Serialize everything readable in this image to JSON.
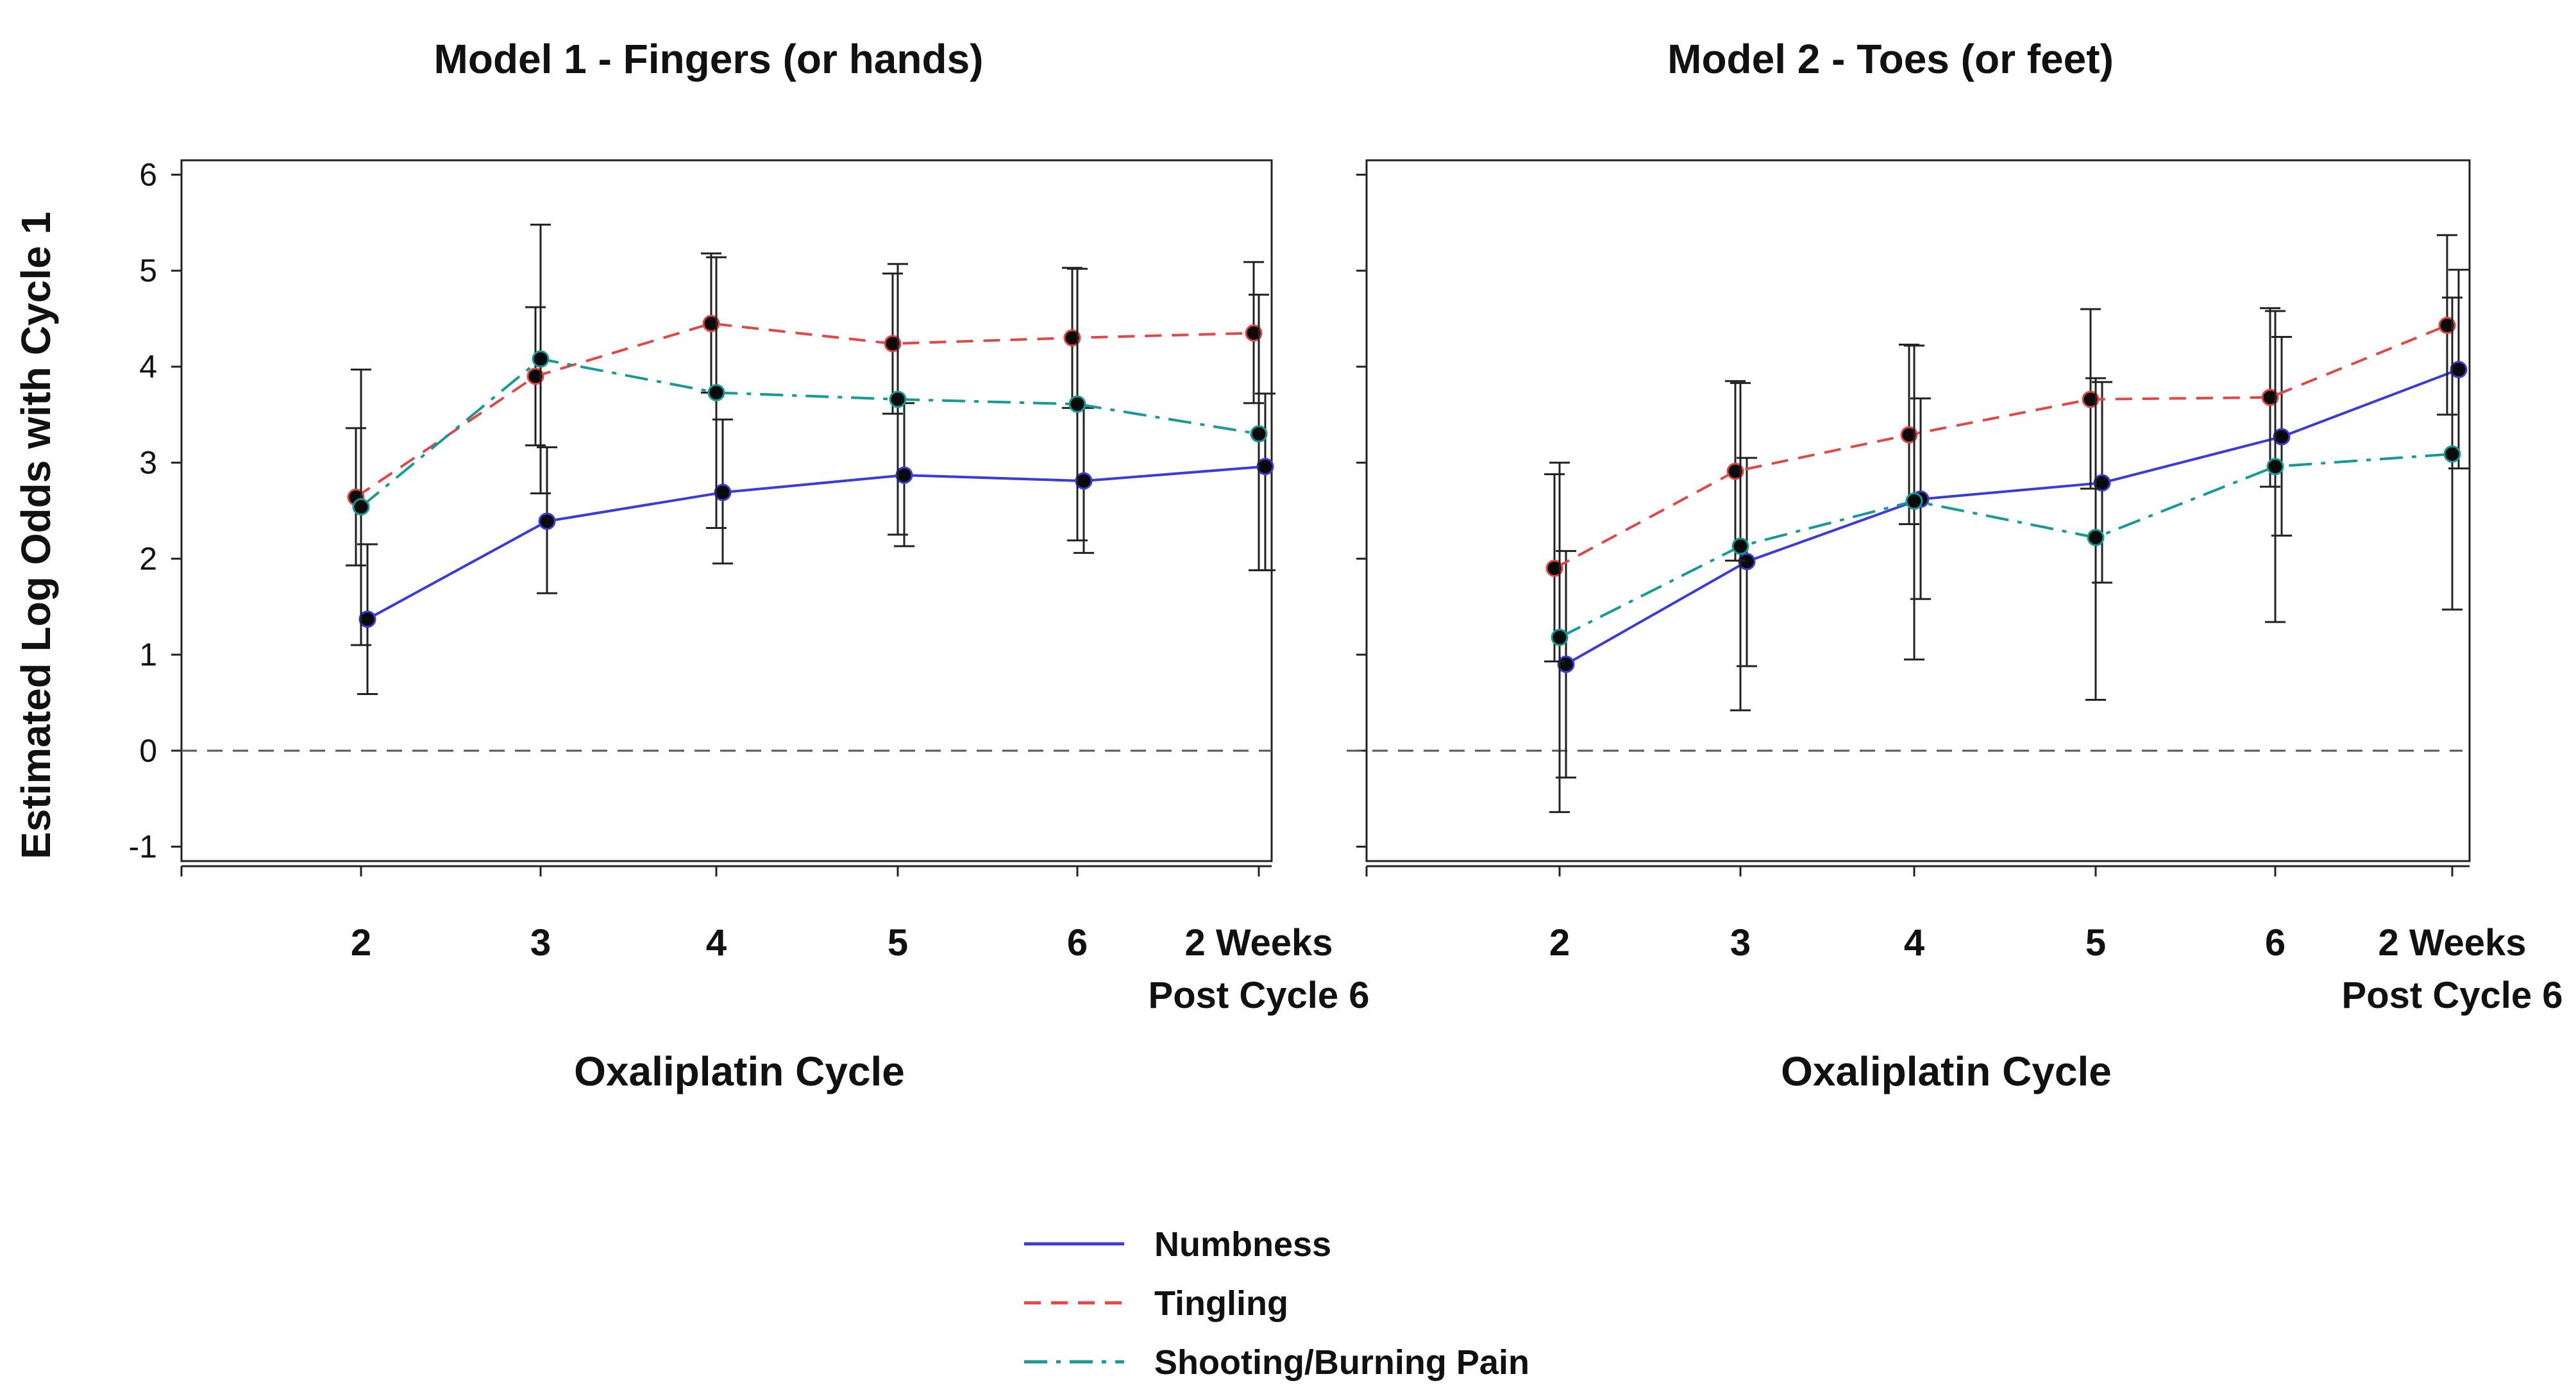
{
  "colors": {
    "numbness": "#3b3bd9",
    "tingling": "#e04848",
    "pain": "#159a96",
    "marker": "#0a0a0a",
    "errorbar": "#222222",
    "reference_line": "#555555",
    "frame": "#222222"
  },
  "shared": {
    "ylabel": "Estimated Log Odds with Cycle 1",
    "y_ticks": [
      "-1",
      "0",
      "1",
      "2",
      "3",
      "4",
      "5",
      "6"
    ]
  },
  "legend": {
    "items": [
      {
        "label": "Numbness",
        "series": "numbness",
        "dash": "solid"
      },
      {
        "label": "Tingling",
        "series": "tingling",
        "dash": "dashed"
      },
      {
        "label": "Shooting/Burning Pain",
        "series": "pain",
        "dash": "dashdot"
      }
    ]
  },
  "chart_data": [
    {
      "type": "line",
      "title": "Model 1 - Fingers (or hands)",
      "xlabel": "Oxaliplatin Cycle",
      "ylabel": "Estimated Log Odds with Cycle 1",
      "categories": [
        "2",
        "3",
        "4",
        "5",
        "6",
        "2 Weeks Post Cycle 6"
      ],
      "category_lines": [
        [
          "2"
        ],
        [
          "3"
        ],
        [
          "4"
        ],
        [
          "5"
        ],
        [
          "6"
        ],
        [
          "2 Weeks",
          "Post Cycle 6"
        ]
      ],
      "ylim": [
        -1.15,
        6.15
      ],
      "y_ticks": [
        -1,
        0,
        1,
        2,
        3,
        4,
        5,
        6
      ],
      "reference_line": 0,
      "legend_position": "bottom",
      "series": [
        {
          "name": "Numbness",
          "key": "numbness",
          "values": [
            1.37,
            2.39,
            2.69,
            2.87,
            2.81,
            2.96
          ],
          "lower": [
            0.59,
            1.64,
            1.95,
            2.13,
            2.06,
            1.88
          ],
          "upper": [
            2.15,
            3.16,
            3.45,
            3.62,
            3.57,
            3.72
          ]
        },
        {
          "name": "Tingling",
          "key": "tingling",
          "values": [
            2.64,
            3.9,
            4.45,
            4.24,
            4.3,
            4.35
          ],
          "lower": [
            1.93,
            3.18,
            3.73,
            3.51,
            3.57,
            3.62
          ],
          "upper": [
            3.36,
            4.62,
            5.18,
            4.97,
            5.03,
            5.09
          ]
        },
        {
          "name": "Shooting/Burning Pain",
          "key": "pain",
          "values": [
            2.54,
            4.08,
            3.73,
            3.66,
            3.61,
            3.3
          ],
          "lower": [
            1.1,
            2.68,
            2.32,
            2.25,
            2.19,
            1.88
          ],
          "upper": [
            3.97,
            5.48,
            5.14,
            5.07,
            5.02,
            4.75
          ]
        }
      ]
    },
    {
      "type": "line",
      "title": "Model 2 - Toes (or feet)",
      "xlabel": "Oxaliplatin Cycle",
      "ylabel": "",
      "categories": [
        "2",
        "3",
        "4",
        "5",
        "6",
        "2 Weeks Post Cycle 6"
      ],
      "category_lines": [
        [
          "2"
        ],
        [
          "3"
        ],
        [
          "4"
        ],
        [
          "5"
        ],
        [
          "6"
        ],
        [
          "2 Weeks",
          "Post Cycle 6"
        ]
      ],
      "ylim": [
        -1.15,
        6.15
      ],
      "y_ticks": [
        -1,
        0,
        1,
        2,
        3,
        4,
        5,
        6
      ],
      "reference_line": 0,
      "legend_position": "bottom",
      "series": [
        {
          "name": "Numbness",
          "key": "numbness",
          "values": [
            0.9,
            1.97,
            2.62,
            2.79,
            3.27,
            3.97
          ],
          "lower": [
            -0.28,
            0.88,
            1.58,
            1.75,
            2.24,
            2.94
          ],
          "upper": [
            2.08,
            3.05,
            3.67,
            3.84,
            4.31,
            5.01
          ]
        },
        {
          "name": "Tingling",
          "key": "tingling",
          "values": [
            1.9,
            2.91,
            3.29,
            3.66,
            3.68,
            4.43
          ],
          "lower": [
            0.93,
            1.98,
            2.36,
            2.73,
            2.75,
            3.5
          ],
          "upper": [
            2.88,
            3.85,
            4.23,
            4.6,
            4.61,
            5.37
          ]
        },
        {
          "name": "Shooting/Burning Pain",
          "key": "pain",
          "values": [
            1.18,
            2.13,
            2.6,
            2.22,
            2.96,
            3.09
          ],
          "lower": [
            -0.64,
            0.42,
            0.95,
            0.53,
            1.34,
            1.47
          ],
          "upper": [
            3.0,
            3.83,
            4.22,
            3.88,
            4.58,
            4.72
          ]
        }
      ]
    }
  ]
}
